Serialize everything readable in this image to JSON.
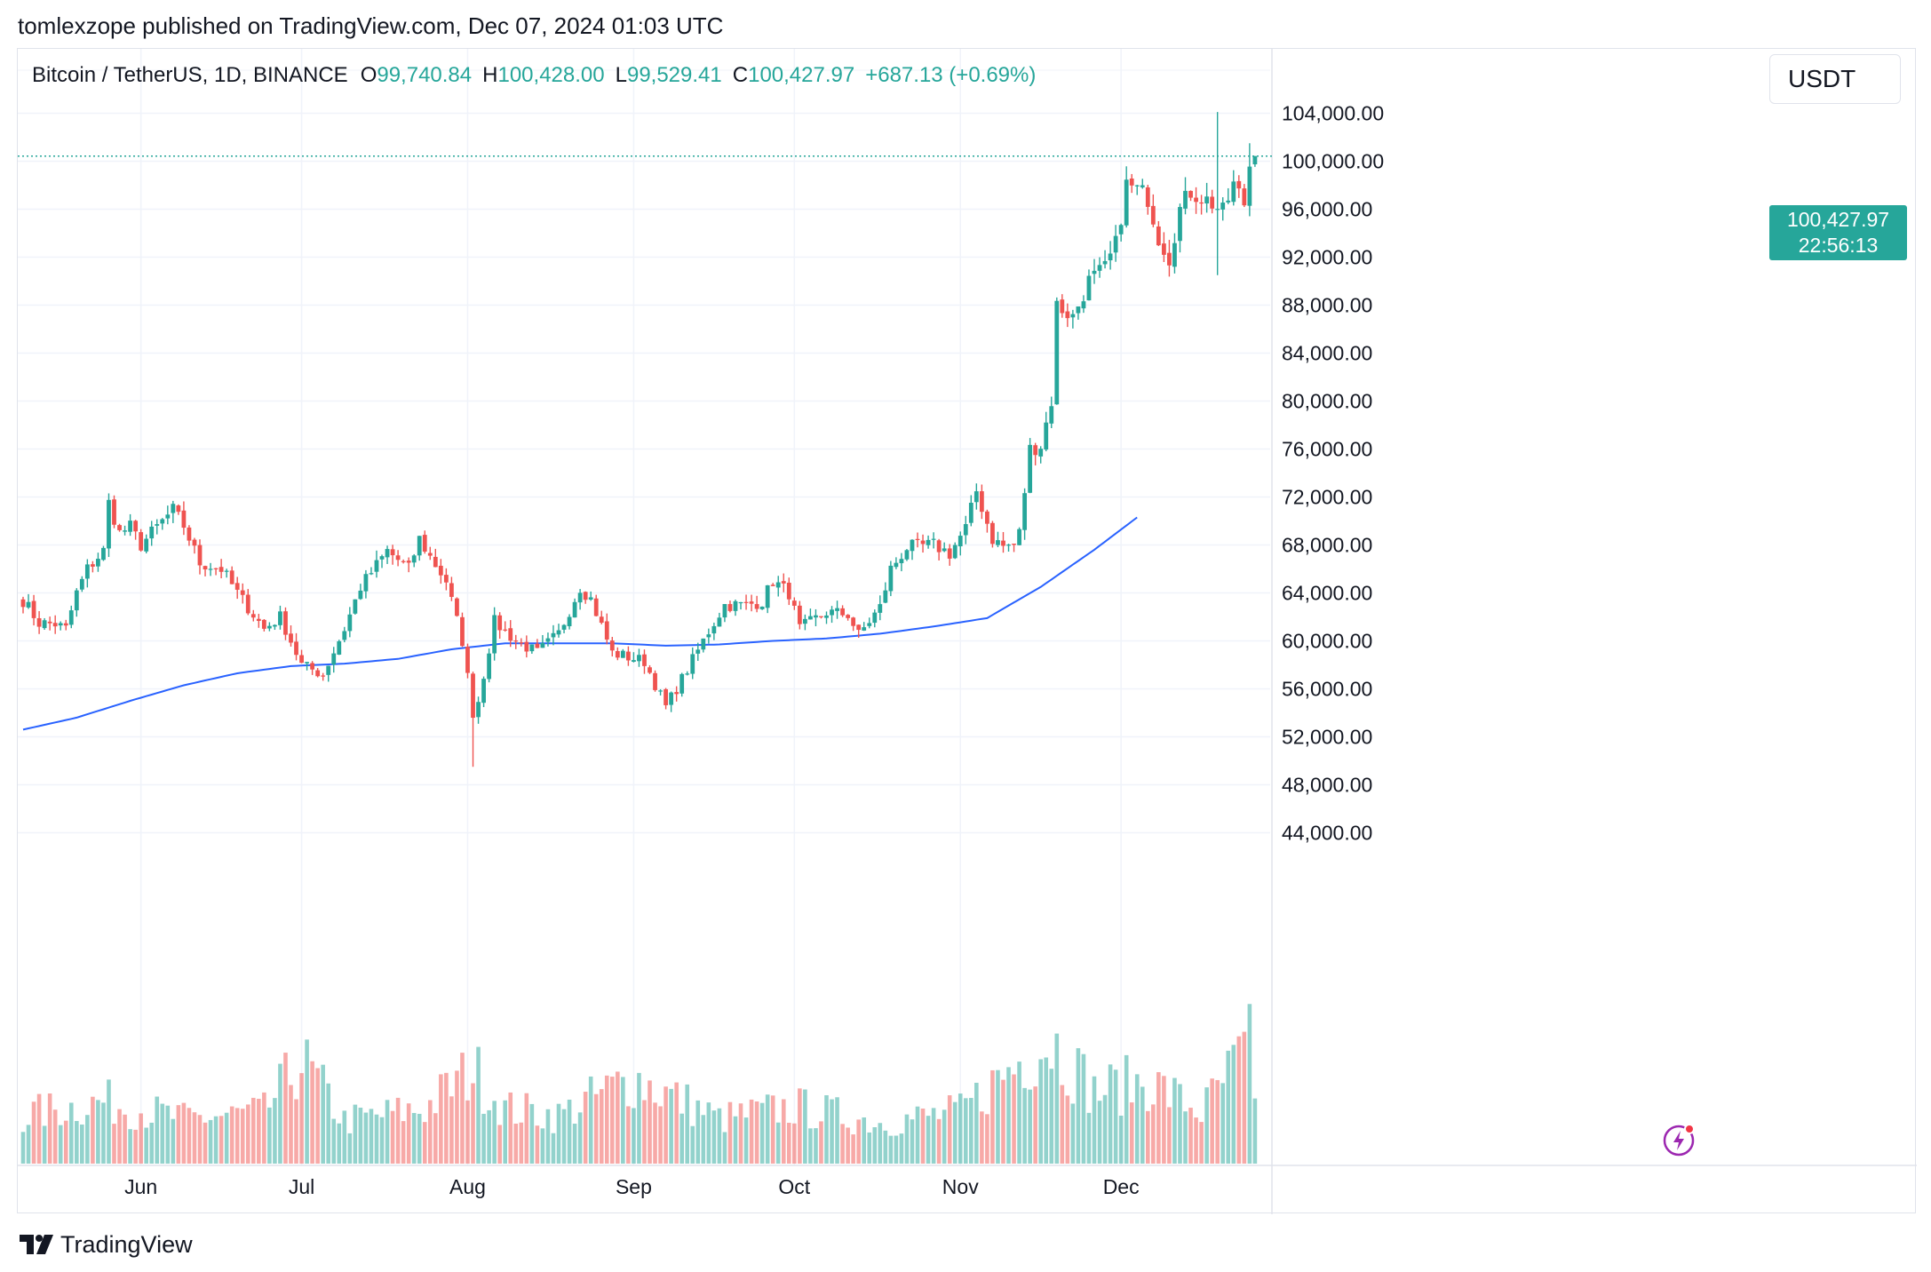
{
  "header": {
    "publisher_line": "tomlexzope published on TradingView.com, Dec 07, 2024 01:03 UTC"
  },
  "legend": {
    "symbol": "Bitcoin / TetherUS, 1D, BINANCE",
    "open_label": "O",
    "open": "99,740.84",
    "high_label": "H",
    "high": "100,428.00",
    "low_label": "L",
    "low": "99,529.41",
    "close_label": "C",
    "close": "100,427.97",
    "change": "+687.13 (+0.69%)"
  },
  "price_scale": {
    "currency_button": "USDT",
    "last_price": "100,427.97",
    "countdown": "22:56:13"
  },
  "footer": {
    "brand": "TradingView"
  },
  "colors": {
    "up": "#26a69a",
    "down": "#ef5350",
    "ma": "#2962ff",
    "grid": "#f0f3fa"
  },
  "chart_data": {
    "type": "candlestick",
    "symbol": "Bitcoin / TetherUS",
    "interval": "1D",
    "exchange": "BINANCE",
    "ylim": [
      43000,
      107000
    ],
    "y_ticks": [
      104000,
      100000,
      96000,
      92000,
      88000,
      84000,
      80000,
      76000,
      72000,
      68000,
      64000,
      60000,
      56000,
      52000,
      48000,
      44000
    ],
    "y_tick_labels": [
      "104,000.00",
      "100,000.00",
      "96,000.00",
      "92,000.00",
      "88,000.00",
      "84,000.00",
      "80,000.00",
      "76,000.00",
      "72,000.00",
      "68,000.00",
      "64,000.00",
      "60,000.00",
      "56,000.00",
      "52,000.00",
      "48,000.00",
      "44,000.00"
    ],
    "x_labels": [
      {
        "label": "Jun",
        "index": 22
      },
      {
        "label": "Jul",
        "index": 52
      },
      {
        "label": "Aug",
        "index": 83
      },
      {
        "label": "Sep",
        "index": 114
      },
      {
        "label": "Oct",
        "index": 144
      },
      {
        "label": "Nov",
        "index": 175
      },
      {
        "label": "Dec",
        "index": 205
      }
    ],
    "last_price": 100427.97,
    "ma_points": [
      [
        0,
        52600
      ],
      [
        10,
        53600
      ],
      [
        20,
        55000
      ],
      [
        30,
        56300
      ],
      [
        40,
        57300
      ],
      [
        50,
        57900
      ],
      [
        60,
        58100
      ],
      [
        70,
        58500
      ],
      [
        80,
        59300
      ],
      [
        90,
        59800
      ],
      [
        100,
        59800
      ],
      [
        110,
        59800
      ],
      [
        120,
        59600
      ],
      [
        130,
        59700
      ],
      [
        140,
        60000
      ],
      [
        150,
        60200
      ],
      [
        160,
        60600
      ],
      [
        170,
        61200
      ],
      [
        180,
        61900
      ],
      [
        190,
        64500
      ],
      [
        200,
        67600
      ],
      [
        208,
        70300
      ]
    ],
    "ohlc_anchors": [
      [
        0,
        63400
      ],
      [
        3,
        61500
      ],
      [
        6,
        61400
      ],
      [
        8,
        61000
      ],
      [
        10,
        64000
      ],
      [
        12,
        66000
      ],
      [
        15,
        67500
      ],
      [
        16,
        71500
      ],
      [
        18,
        69000
      ],
      [
        20,
        69500
      ],
      [
        22,
        68000
      ],
      [
        25,
        69500
      ],
      [
        28,
        70900
      ],
      [
        30,
        69600
      ],
      [
        33,
        66500
      ],
      [
        37,
        66000
      ],
      [
        40,
        64000
      ],
      [
        45,
        61000
      ],
      [
        48,
        62000
      ],
      [
        52,
        58000
      ],
      [
        56,
        57200
      ],
      [
        60,
        61000
      ],
      [
        63,
        64500
      ],
      [
        68,
        67500
      ],
      [
        72,
        66000
      ],
      [
        74,
        68500
      ],
      [
        76,
        67000
      ],
      [
        79,
        65000
      ],
      [
        82,
        60000
      ],
      [
        84,
        54000
      ],
      [
        85,
        55000
      ],
      [
        88,
        61600
      ],
      [
        92,
        60000
      ],
      [
        96,
        59000
      ],
      [
        100,
        60600
      ],
      [
        104,
        64500
      ],
      [
        106,
        63500
      ],
      [
        110,
        59000
      ],
      [
        116,
        58300
      ],
      [
        120,
        54500
      ],
      [
        124,
        57600
      ],
      [
        128,
        60800
      ],
      [
        131,
        63000
      ],
      [
        135,
        63000
      ],
      [
        138,
        63300
      ],
      [
        140,
        65000
      ],
      [
        143,
        64000
      ],
      [
        145,
        61000
      ],
      [
        150,
        62400
      ],
      [
        154,
        62200
      ],
      [
        156,
        60500
      ],
      [
        160,
        62800
      ],
      [
        162,
        66000
      ],
      [
        165,
        67800
      ],
      [
        170,
        68000
      ],
      [
        173,
        67300
      ],
      [
        176,
        69400
      ],
      [
        178,
        72500
      ],
      [
        181,
        68500
      ],
      [
        183,
        67900
      ],
      [
        185,
        68000
      ],
      [
        186,
        69000
      ],
      [
        188,
        76000
      ],
      [
        190,
        76300
      ],
      [
        192,
        80000
      ],
      [
        193,
        88000
      ],
      [
        196,
        87000
      ],
      [
        199,
        90000
      ],
      [
        202,
        91000
      ],
      [
        204,
        93000
      ],
      [
        206,
        98000
      ],
      [
        208,
        97600
      ],
      [
        210,
        97000
      ],
      [
        212,
        93700
      ],
      [
        214,
        92000
      ],
      [
        216,
        96000
      ],
      [
        218,
        97500
      ],
      [
        220,
        97000
      ],
      [
        222,
        96500
      ],
      [
        224,
        95700
      ],
      [
        226,
        98000
      ],
      [
        228,
        96500
      ],
      [
        229,
        99700
      ],
      [
        230,
        100428
      ]
    ],
    "volume_anchors": [
      [
        0,
        0.28
      ],
      [
        15,
        0.36
      ],
      [
        30,
        0.26
      ],
      [
        45,
        0.3
      ],
      [
        52,
        0.6
      ],
      [
        60,
        0.25
      ],
      [
        75,
        0.32
      ],
      [
        84,
        0.55
      ],
      [
        90,
        0.32
      ],
      [
        100,
        0.28
      ],
      [
        114,
        0.5
      ],
      [
        130,
        0.26
      ],
      [
        144,
        0.33
      ],
      [
        160,
        0.24
      ],
      [
        175,
        0.3
      ],
      [
        188,
        0.65
      ],
      [
        192,
        0.72
      ],
      [
        200,
        0.42
      ],
      [
        210,
        0.48
      ],
      [
        220,
        0.3
      ],
      [
        229,
        0.68
      ],
      [
        230,
        0.33
      ]
    ]
  }
}
